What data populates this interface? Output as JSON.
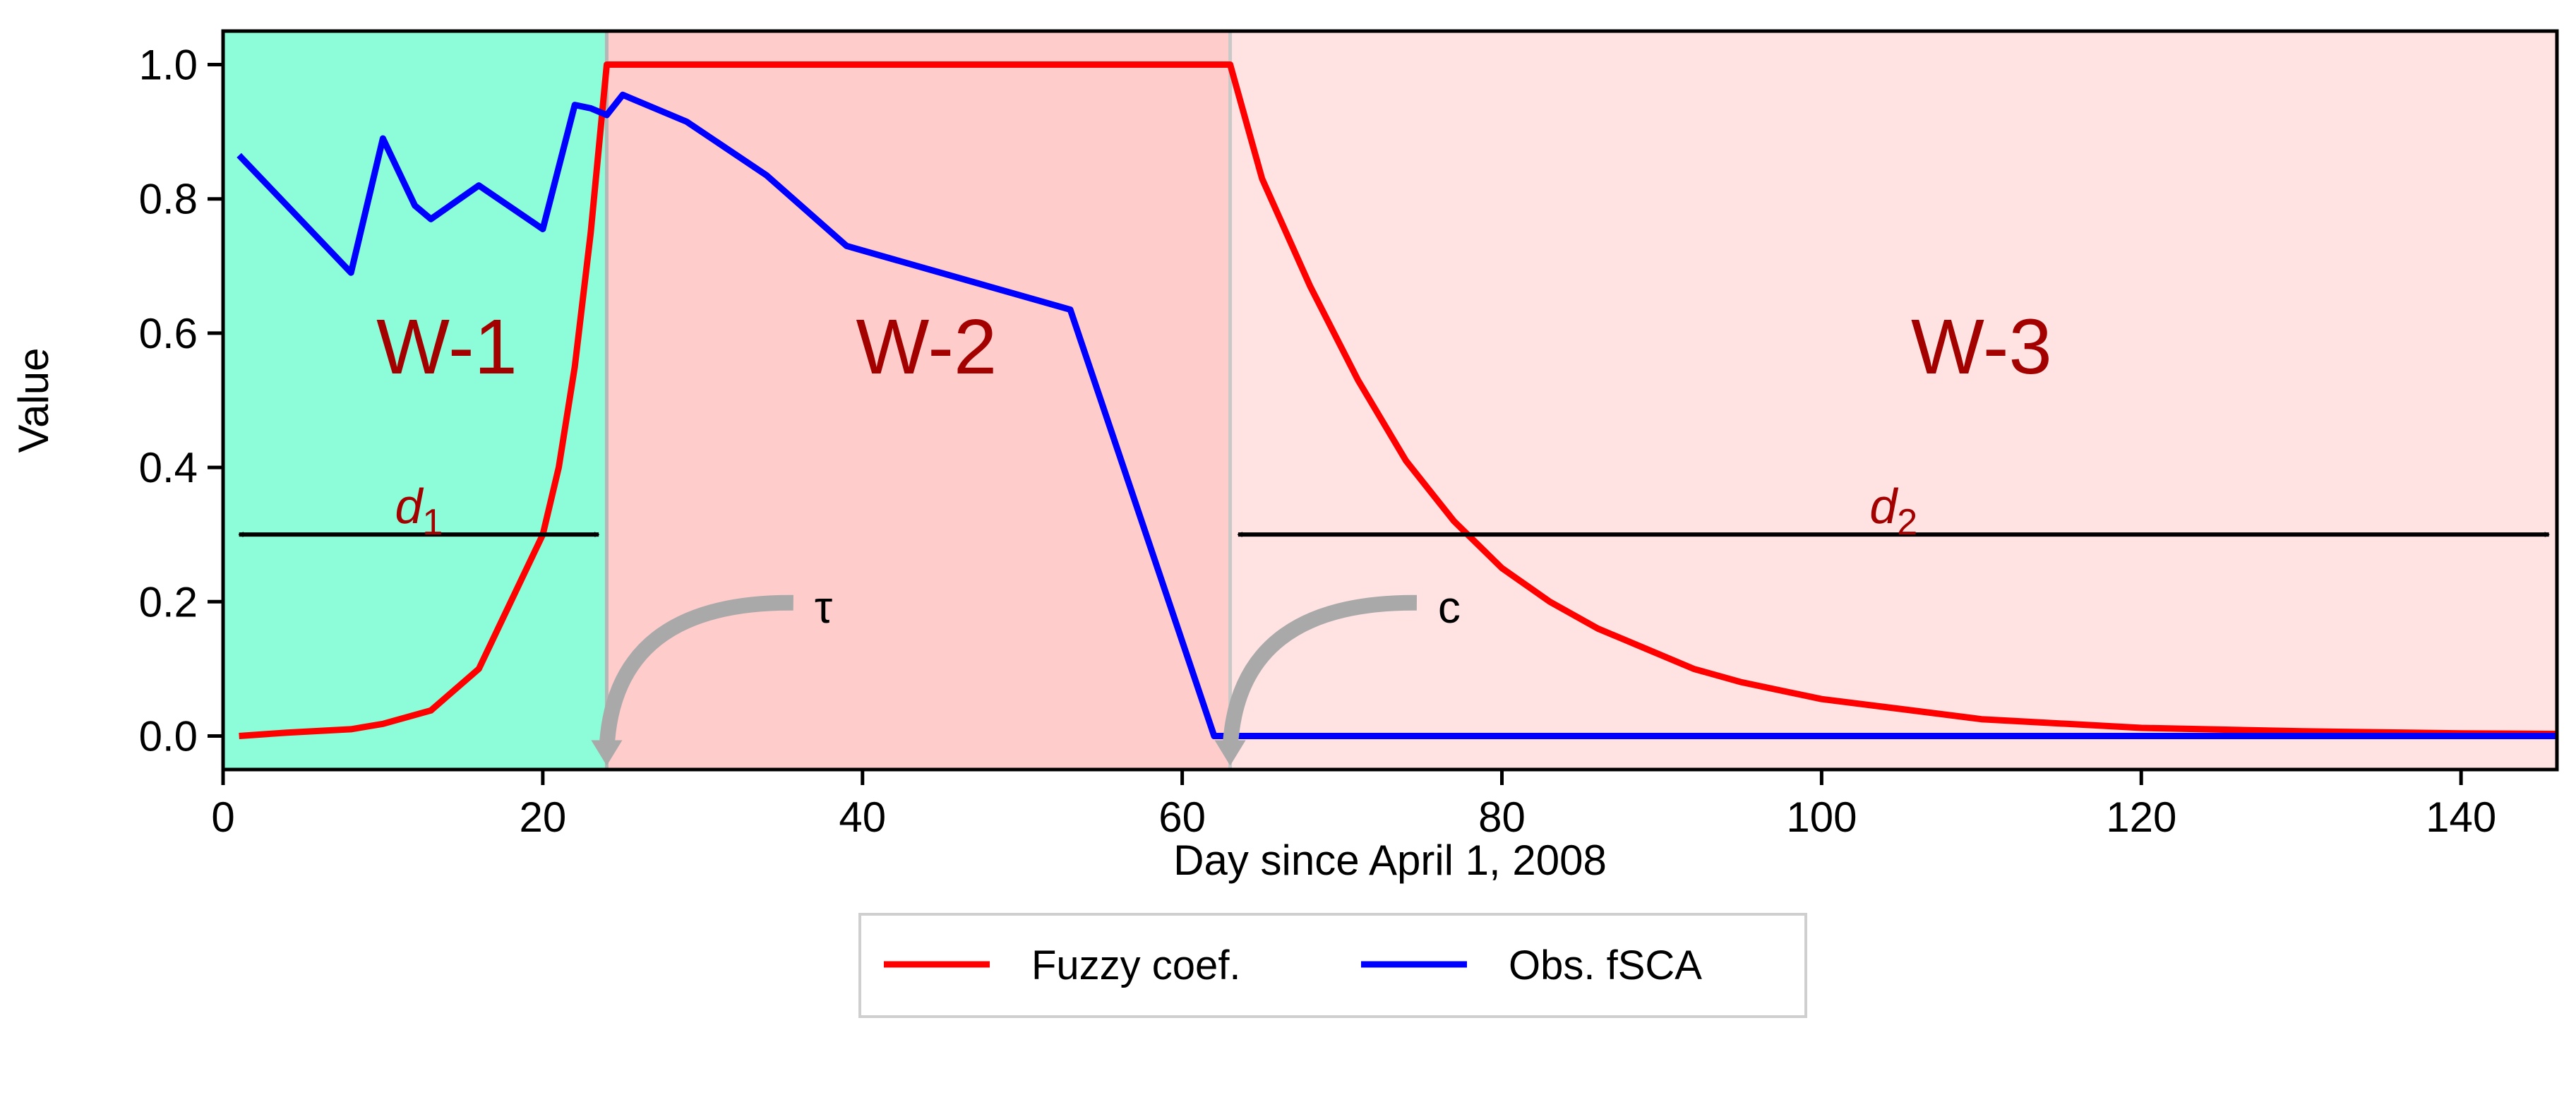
{
  "chart_data": {
    "type": "line",
    "title": "",
    "xlabel": "Day since April 1, 2008",
    "ylabel": "Value",
    "xlim": [
      0,
      146
    ],
    "ylim": [
      -0.05,
      1.05
    ],
    "x_ticks": [
      0,
      20,
      40,
      60,
      80,
      100,
      120,
      140
    ],
    "x_tick_labels": [
      "0",
      "20",
      "40",
      "60",
      "80",
      "100",
      "120",
      "140"
    ],
    "y_ticks": [
      0.0,
      0.2,
      0.4,
      0.6,
      0.8,
      1.0
    ],
    "y_tick_labels": [
      "0.0",
      "0.2",
      "0.4",
      "0.6",
      "0.8",
      "1.0"
    ],
    "grid": false,
    "legend_placement": "bottom-center, below axes",
    "regions": [
      {
        "label": "W-1",
        "x_start": 0,
        "x_end": 24,
        "color": "#8dfcd8",
        "label_x": 14,
        "label_y": 0.54
      },
      {
        "label": "W-2",
        "x_start": 24,
        "x_end": 63,
        "color": "#ffcccc",
        "label_x": 44,
        "label_y": 0.54
      },
      {
        "label": "W-3",
        "x_start": 63,
        "x_end": 146,
        "color": "#ffe2e2",
        "label_x": 110,
        "label_y": 0.54
      }
    ],
    "region_label_color": "#a30000",
    "boundary_lines": [
      {
        "x": 24,
        "color": "#b6b6b6"
      },
      {
        "x": 63,
        "color": "#c9c9c9"
      }
    ],
    "series": [
      {
        "name": "Fuzzy coef.",
        "color": "#ff0000",
        "x": [
          1,
          4,
          8,
          10,
          13,
          16,
          18,
          20,
          21,
          22,
          23,
          24,
          26,
          30,
          40,
          50,
          60,
          63,
          65,
          68,
          71,
          74,
          77,
          80,
          83,
          86,
          89,
          92,
          95,
          100,
          105,
          110,
          120,
          130,
          140,
          146
        ],
        "values": [
          0.0,
          0.005,
          0.01,
          0.018,
          0.038,
          0.1,
          0.2,
          0.3,
          0.4,
          0.55,
          0.75,
          1.0,
          1.0,
          1.0,
          1.0,
          1.0,
          1.0,
          1.0,
          0.83,
          0.67,
          0.53,
          0.41,
          0.32,
          0.25,
          0.2,
          0.16,
          0.13,
          0.1,
          0.08,
          0.055,
          0.04,
          0.025,
          0.012,
          0.007,
          0.004,
          0.003
        ]
      },
      {
        "name": "Obs. fSCA",
        "color": "#0000ff",
        "x": [
          1,
          4,
          8,
          10,
          12,
          13,
          16,
          20,
          22,
          23,
          24,
          25,
          29,
          34,
          39,
          53,
          62,
          63,
          146
        ],
        "values": [
          0.865,
          0.79,
          0.69,
          0.89,
          0.79,
          0.77,
          0.82,
          0.755,
          0.94,
          0.935,
          0.925,
          0.955,
          0.915,
          0.835,
          0.73,
          0.635,
          0.0,
          0.0,
          0.0
        ]
      }
    ],
    "arrows": [
      {
        "name": "d1",
        "label": "d",
        "subscript": "1",
        "x_start": 1,
        "x_end": 23.5,
        "y": 0.3
      },
      {
        "name": "d2",
        "label": "d",
        "subscript": "2",
        "x_start": 63.5,
        "x_end": 145.5,
        "y": 0.3
      }
    ],
    "annotations": [
      {
        "name": "tau",
        "text": "τ",
        "x": 37,
        "y": 0.19,
        "arrow_to_x": 24,
        "arrow_to_y": -0.04
      },
      {
        "name": "c",
        "text": "c",
        "x": 76,
        "y": 0.19,
        "arrow_to_x": 63,
        "arrow_to_y": -0.04
      }
    ],
    "legend": [
      {
        "label": "Fuzzy coef.",
        "color": "#ff0000"
      },
      {
        "label": "Obs. fSCA",
        "color": "#0000ff"
      }
    ]
  }
}
